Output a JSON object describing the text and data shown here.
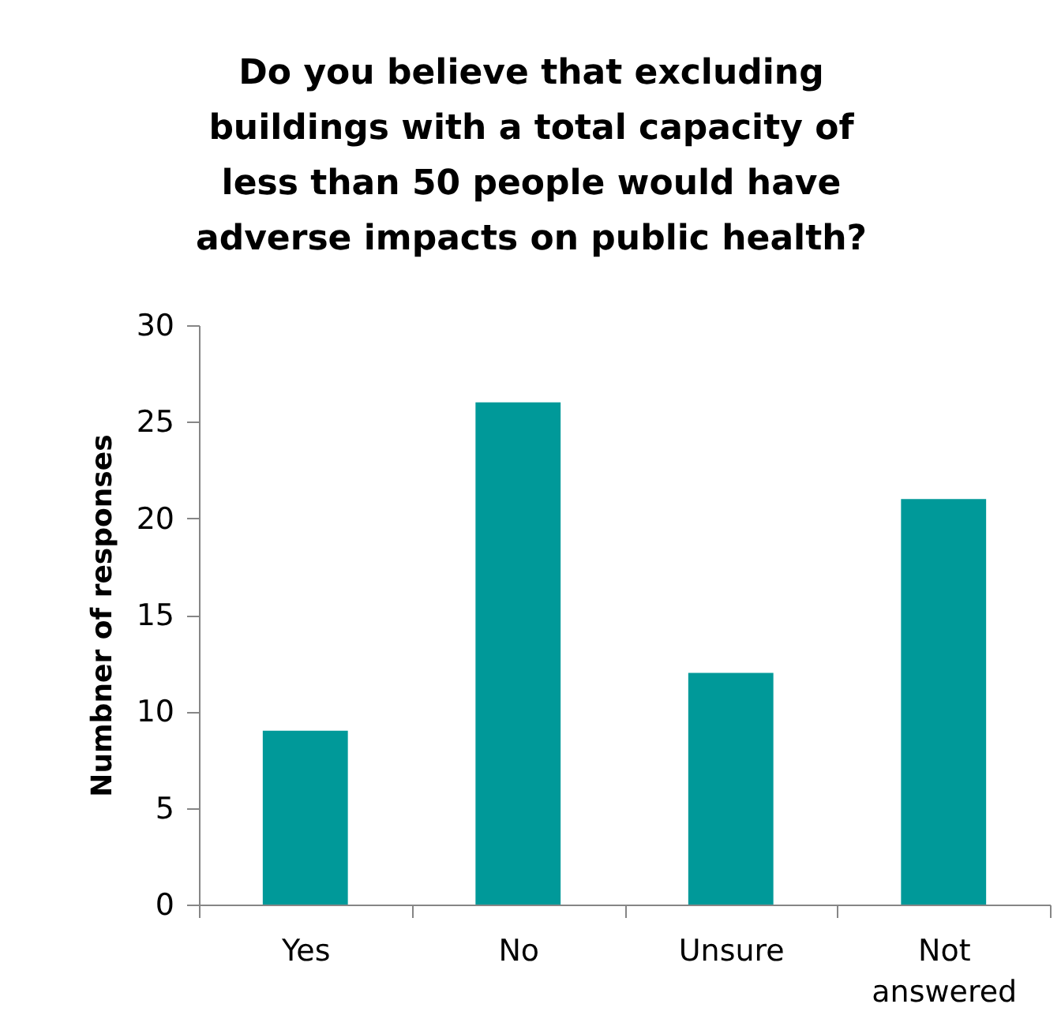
{
  "chart_data": {
    "type": "bar",
    "title": "Do you believe that excluding buildings with a total capacity of less than 50 people would have adverse impacts on public health?",
    "ylabel": "Numbner of responses",
    "categories": [
      "Yes",
      "No",
      "Unsure",
      "Not answered"
    ],
    "values": [
      9,
      26,
      12,
      21
    ],
    "color": "#009999",
    "ylim": [
      0,
      30
    ],
    "yticks": [
      0,
      5,
      10,
      15,
      20,
      25,
      30
    ],
    "grid": false,
    "legend": false
  }
}
